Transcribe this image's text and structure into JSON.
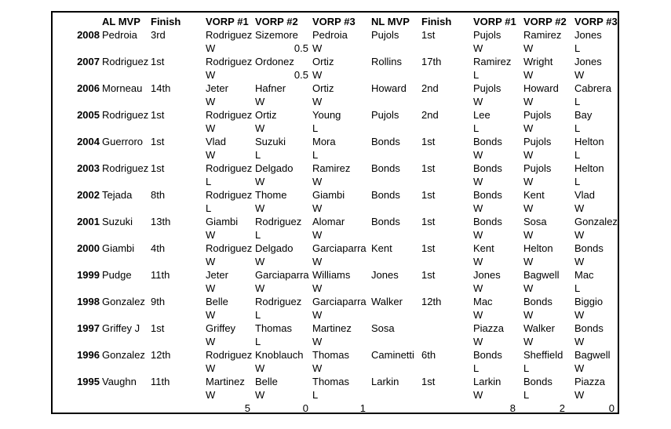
{
  "table": {
    "headers": {
      "al_mvp": "AL MVP",
      "al_finish": "Finish",
      "al_vorp1": "VORP #1",
      "al_vorp2": "VORP #2",
      "al_vorp3": "VORP #3",
      "nl_mvp": "NL MVP",
      "nl_finish": "Finish",
      "nl_vorp1": "VORP #1",
      "nl_vorp2": "VORP #2",
      "nl_vorp3": "VORP #3"
    },
    "rows": [
      {
        "year": "2008",
        "al_mvp": "Pedroia",
        "al_finish": "3rd",
        "al_vorp": [
          [
            "Rodriguez",
            "W"
          ],
          [
            "Sizemore",
            "0.5"
          ],
          [
            "Pedroia",
            "W"
          ]
        ],
        "nl_mvp": "Pujols",
        "nl_finish": "1st",
        "nl_vorp": [
          [
            "Pujols",
            "W"
          ],
          [
            "Ramirez",
            "W"
          ],
          [
            "Jones",
            "L"
          ]
        ]
      },
      {
        "year": "2007",
        "al_mvp": "Rodriguez",
        "al_finish": "1st",
        "al_vorp": [
          [
            "Rodriguez",
            "W"
          ],
          [
            "Ordonez",
            "0.5"
          ],
          [
            "Ortiz",
            "W"
          ]
        ],
        "nl_mvp": "Rollins",
        "nl_finish": "17th",
        "nl_vorp": [
          [
            "Ramirez",
            "L"
          ],
          [
            "Wright",
            "W"
          ],
          [
            "Jones",
            "W"
          ]
        ]
      },
      {
        "year": "2006",
        "al_mvp": "Morneau",
        "al_finish": "14th",
        "al_vorp": [
          [
            "Jeter",
            "W"
          ],
          [
            "Hafner",
            "W"
          ],
          [
            "Ortiz",
            "W"
          ]
        ],
        "nl_mvp": "Howard",
        "nl_finish": "2nd",
        "nl_vorp": [
          [
            "Pujols",
            "W"
          ],
          [
            "Howard",
            "W"
          ],
          [
            "Cabrera",
            "L"
          ]
        ]
      },
      {
        "year": "2005",
        "al_mvp": "Rodriguez",
        "al_finish": "1st",
        "al_vorp": [
          [
            "Rodriguez",
            "W"
          ],
          [
            "Ortiz",
            "W"
          ],
          [
            "Young",
            "L"
          ]
        ],
        "nl_mvp": "Pujols",
        "nl_finish": "2nd",
        "nl_vorp": [
          [
            "Lee",
            "L"
          ],
          [
            "Pujols",
            "W"
          ],
          [
            "Bay",
            "L"
          ]
        ]
      },
      {
        "year": "2004",
        "al_mvp": "Guerroro",
        "al_finish": "1st",
        "al_vorp": [
          [
            "Vlad",
            "W"
          ],
          [
            "Suzuki",
            "L"
          ],
          [
            "Mora",
            "L"
          ]
        ],
        "nl_mvp": "Bonds",
        "nl_finish": "1st",
        "nl_vorp": [
          [
            "Bonds",
            "W"
          ],
          [
            "Pujols",
            "W"
          ],
          [
            "Helton",
            "L"
          ]
        ]
      },
      {
        "year": "2003",
        "al_mvp": "Rodriguez",
        "al_finish": "1st",
        "al_vorp": [
          [
            "Rodriguez",
            "L"
          ],
          [
            "Delgado",
            "W"
          ],
          [
            "Ramirez",
            "W"
          ]
        ],
        "nl_mvp": "Bonds",
        "nl_finish": "1st",
        "nl_vorp": [
          [
            "Bonds",
            "W"
          ],
          [
            "Pujols",
            "W"
          ],
          [
            "Helton",
            "L"
          ]
        ]
      },
      {
        "year": "2002",
        "al_mvp": "Tejada",
        "al_finish": "8th",
        "al_vorp": [
          [
            "Rodriguez",
            "L"
          ],
          [
            "Thome",
            "W"
          ],
          [
            "Giambi",
            "W"
          ]
        ],
        "nl_mvp": "Bonds",
        "nl_finish": "1st",
        "nl_vorp": [
          [
            "Bonds",
            "W"
          ],
          [
            "Kent",
            "W"
          ],
          [
            "Vlad",
            "W"
          ]
        ]
      },
      {
        "year": "2001",
        "al_mvp": "Suzuki",
        "al_finish": "13th",
        "al_vorp": [
          [
            "Giambi",
            "W"
          ],
          [
            "Rodriguez",
            "L"
          ],
          [
            "Alomar",
            "W"
          ]
        ],
        "nl_mvp": "Bonds",
        "nl_finish": "1st",
        "nl_vorp": [
          [
            "Bonds",
            "W"
          ],
          [
            "Sosa",
            "W"
          ],
          [
            "Gonzalez",
            "W"
          ]
        ]
      },
      {
        "year": "2000",
        "al_mvp": "Giambi",
        "al_finish": "4th",
        "al_vorp": [
          [
            "Rodriguez",
            "W"
          ],
          [
            "Delgado",
            "W"
          ],
          [
            "Garciaparra",
            "W"
          ]
        ],
        "nl_mvp": "Kent",
        "nl_finish": "1st",
        "nl_vorp": [
          [
            "Kent",
            "W"
          ],
          [
            "Helton",
            "W"
          ],
          [
            "Bonds",
            "W"
          ]
        ]
      },
      {
        "year": "1999",
        "al_mvp": "Pudge",
        "al_finish": "11th",
        "al_vorp": [
          [
            "Jeter",
            "W"
          ],
          [
            "Garciaparra",
            "W"
          ],
          [
            "Williams",
            "W"
          ]
        ],
        "nl_mvp": "Jones",
        "nl_finish": "1st",
        "nl_vorp": [
          [
            "Jones",
            "W"
          ],
          [
            "Bagwell",
            "W"
          ],
          [
            "Mac",
            "L"
          ]
        ]
      },
      {
        "year": "1998",
        "al_mvp": "Gonzalez",
        "al_finish": "9th",
        "al_vorp": [
          [
            "Belle",
            "W"
          ],
          [
            "Rodriguez",
            "L"
          ],
          [
            "Garciaparra",
            "W"
          ]
        ],
        "nl_mvp": "Walker",
        "nl_finish": "12th",
        "nl_vorp": [
          [
            "Mac",
            "W"
          ],
          [
            "Bonds",
            "W"
          ],
          [
            "Biggio",
            "W"
          ]
        ]
      },
      {
        "year": "1997",
        "al_mvp": "Griffey J",
        "al_finish": "1st",
        "al_vorp": [
          [
            "Griffey",
            "W"
          ],
          [
            "Thomas",
            "L"
          ],
          [
            "Martinez",
            "W"
          ]
        ],
        "nl_mvp": "Sosa",
        "nl_finish": "",
        "nl_vorp": [
          [
            "Piazza",
            "W"
          ],
          [
            "Walker",
            "W"
          ],
          [
            "Bonds",
            "W"
          ]
        ]
      },
      {
        "year": "1996",
        "al_mvp": "Gonzalez",
        "al_finish": "12th",
        "al_vorp": [
          [
            "Rodriguez",
            "W"
          ],
          [
            "Knoblauch",
            "W"
          ],
          [
            "Thomas",
            "W"
          ]
        ],
        "nl_mvp": "Caminetti",
        "nl_finish": "6th",
        "nl_vorp": [
          [
            "Bonds",
            "L"
          ],
          [
            "Sheffield",
            "L"
          ],
          [
            "Bagwell",
            "W"
          ]
        ]
      },
      {
        "year": "1995",
        "al_mvp": "Vaughn",
        "al_finish": "11th",
        "al_vorp": [
          [
            "Martinez",
            "W"
          ],
          [
            "Belle",
            "W"
          ],
          [
            "Thomas",
            "L"
          ]
        ],
        "nl_mvp": "Larkin",
        "nl_finish": "1st",
        "nl_vorp": [
          [
            "Larkin",
            "W"
          ],
          [
            "Bonds",
            "L"
          ],
          [
            "Piazza",
            "W"
          ]
        ]
      }
    ],
    "totals": {
      "al": [
        "5",
        "0",
        "1"
      ],
      "nl": [
        "8",
        "2",
        "0"
      ]
    }
  },
  "colors": {
    "text": "#000000",
    "background": "#ffffff",
    "border": "#000000"
  }
}
